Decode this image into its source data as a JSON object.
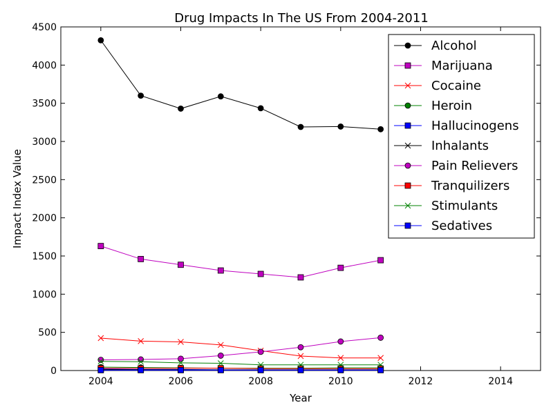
{
  "chart_data": {
    "type": "line",
    "title": "Drug Impacts In The US From 2004-2011",
    "xlabel": "Year",
    "ylabel": "Impact Index Value",
    "xlim": [
      2003,
      2015
    ],
    "ylim": [
      0,
      4500
    ],
    "xticks": [
      2004,
      2006,
      2008,
      2010,
      2012,
      2014
    ],
    "yticks": [
      0,
      500,
      1000,
      1500,
      2000,
      2500,
      3000,
      3500,
      4000,
      4500
    ],
    "grid": false,
    "legend_position": "top-right",
    "x": [
      2004,
      2005,
      2006,
      2007,
      2008,
      2009,
      2010,
      2011
    ],
    "series": [
      {
        "name": "Alcohol",
        "color": "#000000",
        "marker": "circle",
        "values": [
          4325,
          3600,
          3430,
          3590,
          3435,
          3190,
          3195,
          3160
        ]
      },
      {
        "name": "Marijuana",
        "color": "#bf00bf",
        "marker": "square",
        "values": [
          1630,
          1460,
          1385,
          1310,
          1265,
          1220,
          1345,
          1445
        ]
      },
      {
        "name": "Cocaine",
        "color": "#ff0000",
        "marker": "x",
        "values": [
          425,
          385,
          375,
          335,
          260,
          190,
          165,
          165
        ]
      },
      {
        "name": "Heroin",
        "color": "#008000",
        "marker": "circle",
        "values": [
          45,
          40,
          35,
          30,
          30,
          30,
          35,
          35
        ]
      },
      {
        "name": "Hallucinogens",
        "color": "#0000ff",
        "marker": "square",
        "values": [
          20,
          15,
          15,
          10,
          10,
          10,
          10,
          10
        ]
      },
      {
        "name": "Inhalants",
        "color": "#000000",
        "marker": "x",
        "values": [
          15,
          10,
          10,
          8,
          8,
          8,
          8,
          8
        ]
      },
      {
        "name": "Pain Relievers",
        "color": "#bf00bf",
        "marker": "circle",
        "values": [
          140,
          145,
          155,
          195,
          245,
          305,
          380,
          430
        ]
      },
      {
        "name": "Tranquilizers",
        "color": "#ff0000",
        "marker": "square",
        "values": [
          30,
          28,
          30,
          30,
          25,
          25,
          25,
          25
        ]
      },
      {
        "name": "Stimulants",
        "color": "#008000",
        "marker": "x",
        "values": [
          120,
          115,
          100,
          95,
          75,
          75,
          75,
          75
        ]
      },
      {
        "name": "Sedatives",
        "color": "#0000ff",
        "marker": "square",
        "values": [
          5,
          5,
          5,
          5,
          5,
          5,
          5,
          5
        ]
      }
    ]
  }
}
